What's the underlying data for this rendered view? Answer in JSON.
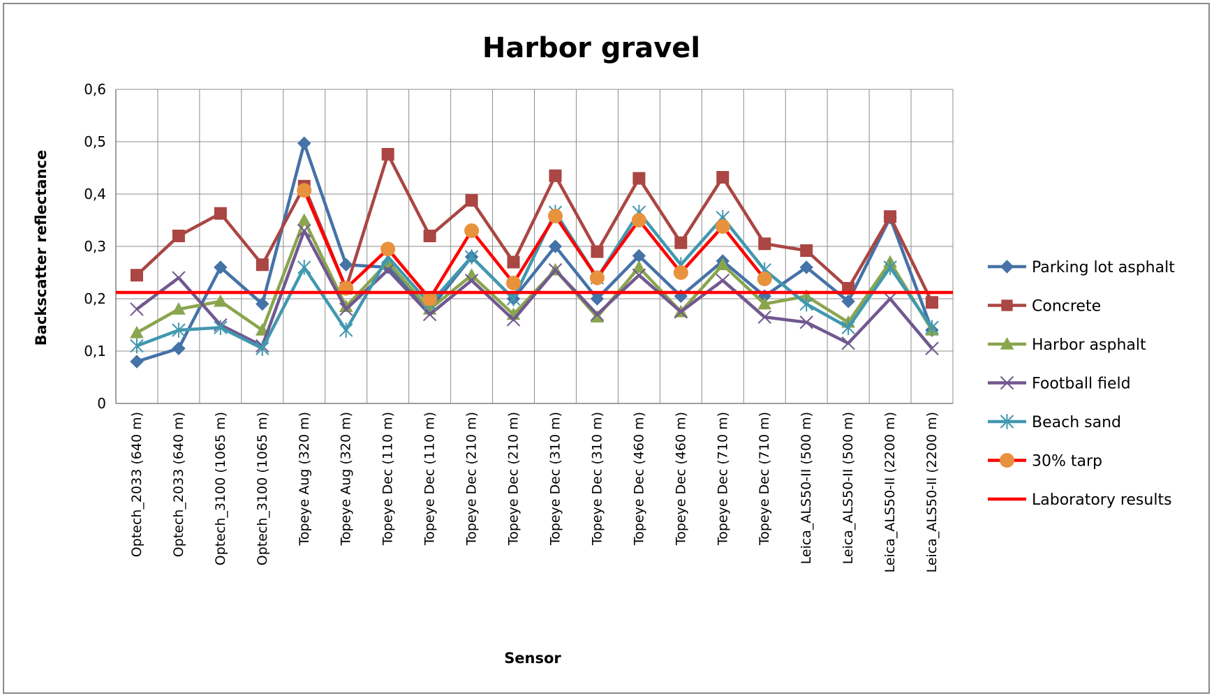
{
  "chart_data": {
    "type": "line",
    "title": "Harbor gravel",
    "xlabel": "Sensor",
    "ylabel": "Backscatter reflectance",
    "ylim": [
      0,
      0.6
    ],
    "yticks": [
      "0",
      "0,1",
      "0,2",
      "0,3",
      "0,4",
      "0,5",
      "0,6"
    ],
    "ytick_values": [
      0,
      0.1,
      0.2,
      0.3,
      0.4,
      0.5,
      0.6
    ],
    "grid": true,
    "legend_position": "right",
    "categories": [
      "Optech_2033 (640 m)",
      "Optech_2033 (640 m)",
      "Optech_3100 (1065 m)",
      "Optech_3100 (1065 m)",
      "Topeye Aug (320 m)",
      "Topeye Aug (320 m)",
      "Topeye Dec (110 m)",
      "Topeye Dec (110 m)",
      "Topeye Dec (210 m)",
      "Topeye Dec (210 m)",
      "Topeye Dec (310 m)",
      "Topeye Dec (310 m)",
      "Topeye Dec (460 m)",
      "Topeye Dec (460 m)",
      "Topeye Dec (710 m)",
      "Topeye Dec (710 m)",
      "Leica_ALS50-II (500 m)",
      "Leica_ALS50-II (500 m)",
      "Leica_ALS50-II (2200 m)",
      "Leica_ALS50-II (2200 m)"
    ],
    "series": [
      {
        "name": "Parking lot asphalt",
        "color": "#4572A7",
        "marker": "diamond",
        "values": [
          0.08,
          0.105,
          0.26,
          0.19,
          0.497,
          0.265,
          0.26,
          0.18,
          0.28,
          0.2,
          0.3,
          0.2,
          0.282,
          0.205,
          0.272,
          0.205,
          0.26,
          0.195,
          0.355,
          0.14
        ]
      },
      {
        "name": "Concrete",
        "color": "#AA4643",
        "marker": "square",
        "values": [
          0.245,
          0.32,
          0.363,
          0.265,
          0.415,
          0.22,
          0.476,
          0.32,
          0.388,
          0.27,
          0.435,
          0.29,
          0.43,
          0.307,
          0.432,
          0.305,
          0.292,
          0.22,
          0.357,
          0.193
        ]
      },
      {
        "name": "Harbor asphalt",
        "color": "#89A54E",
        "marker": "triangle",
        "values": [
          0.135,
          0.18,
          0.195,
          0.14,
          0.35,
          0.185,
          0.27,
          0.18,
          0.245,
          0.17,
          0.255,
          0.165,
          0.26,
          0.175,
          0.265,
          0.19,
          0.205,
          0.155,
          0.27,
          0.14
        ]
      },
      {
        "name": "Football field",
        "color": "#71588F",
        "marker": "x",
        "values": [
          0.18,
          0.24,
          0.15,
          0.11,
          0.33,
          0.18,
          0.255,
          0.17,
          0.235,
          0.16,
          0.255,
          0.17,
          0.245,
          0.175,
          0.235,
          0.165,
          0.155,
          0.115,
          0.2,
          0.105
        ]
      },
      {
        "name": "Beach sand",
        "color": "#4198AF",
        "marker": "star",
        "values": [
          0.11,
          0.14,
          0.145,
          0.105,
          0.26,
          0.14,
          0.28,
          0.19,
          0.28,
          0.2,
          0.365,
          0.24,
          0.365,
          0.265,
          0.355,
          0.255,
          0.19,
          0.145,
          0.26,
          0.145
        ]
      },
      {
        "name": "30% tarp",
        "color": "#FF0000",
        "marker_color": "#E8923E",
        "marker": "circle",
        "values": [
          null,
          null,
          null,
          null,
          0.407,
          0.22,
          0.295,
          0.2,
          0.33,
          0.23,
          0.358,
          0.24,
          0.35,
          0.25,
          0.338,
          0.238,
          null,
          null,
          null,
          null
        ]
      },
      {
        "name": "Laboratory results",
        "color": "#FF0000",
        "marker": "none",
        "values": [
          0.212,
          0.212,
          0.212,
          0.212,
          0.212,
          0.212,
          0.212,
          0.212,
          0.212,
          0.212,
          0.212,
          0.212,
          0.212,
          0.212,
          0.212,
          0.212,
          0.212,
          0.212,
          0.212,
          0.212
        ]
      }
    ]
  }
}
